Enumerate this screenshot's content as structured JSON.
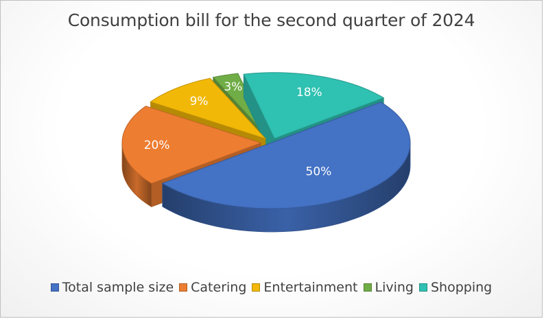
{
  "chart_data": {
    "type": "pie",
    "title": "Consumption bill for the second quarter of 2024",
    "categories": [
      "Total sample size",
      "Catering",
      "Entertainment",
      "Living",
      "Shopping"
    ],
    "values": [
      50,
      20,
      9,
      3,
      18
    ],
    "data_labels": [
      "50%",
      "20%",
      "9%",
      "3%",
      "18%"
    ],
    "colors": [
      "#4472c4",
      "#ed7d31",
      "#f2b807",
      "#70ad47",
      "#2fc1b1"
    ],
    "style": "3d-exploded",
    "legend_position": "bottom"
  }
}
